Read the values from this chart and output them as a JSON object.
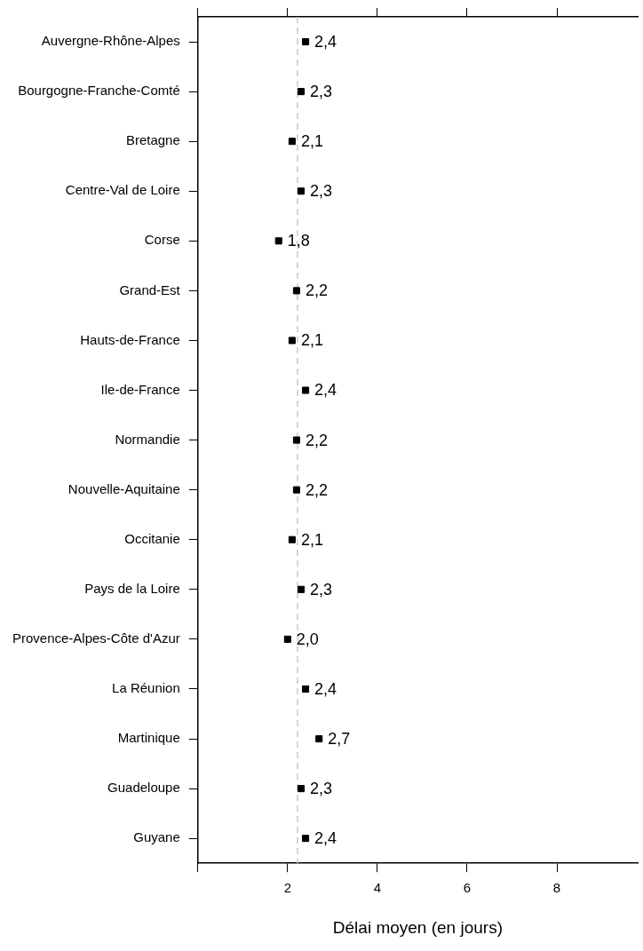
{
  "chart_data": {
    "type": "scatter",
    "orientation": "horizontal",
    "xlabel": "Délai moyen (en jours)",
    "categories": [
      "Auvergne-Rhône-Alpes",
      "Bourgogne-Franche-Comté",
      "Bretagne",
      "Centre-Val de Loire",
      "Corse",
      "Grand-Est",
      "Hauts-de-France",
      "Ile-de-France",
      "Normandie",
      "Nouvelle-Aquitaine",
      "Occitanie",
      "Pays de la Loire",
      "Provence-Alpes-Côte d'Azur",
      "La Réunion",
      "Martinique",
      "Guadeloupe",
      "Guyane"
    ],
    "values": [
      2.4,
      2.3,
      2.1,
      2.3,
      1.8,
      2.2,
      2.1,
      2.4,
      2.2,
      2.2,
      2.1,
      2.3,
      2.0,
      2.4,
      2.7,
      2.3,
      2.4
    ],
    "value_labels": [
      "2,4",
      "2,3",
      "2,1",
      "2,3",
      "1,8",
      "2,2",
      "2,1",
      "2,4",
      "2,2",
      "2,2",
      "2,1",
      "2,3",
      "2,0",
      "2,4",
      "2,7",
      "2,3",
      "2,4"
    ],
    "color": "#000000",
    "marker": "square",
    "xlim": [
      0,
      9.8
    ],
    "xticks": [
      {
        "value": 0,
        "label": null
      },
      2,
      4,
      6,
      8
    ],
    "ref_lines": [
      {
        "axis": "x",
        "value": 2.22,
        "color": "#c8c8c8",
        "line_style": "dashed"
      }
    ],
    "grid": false,
    "legend": false
  }
}
